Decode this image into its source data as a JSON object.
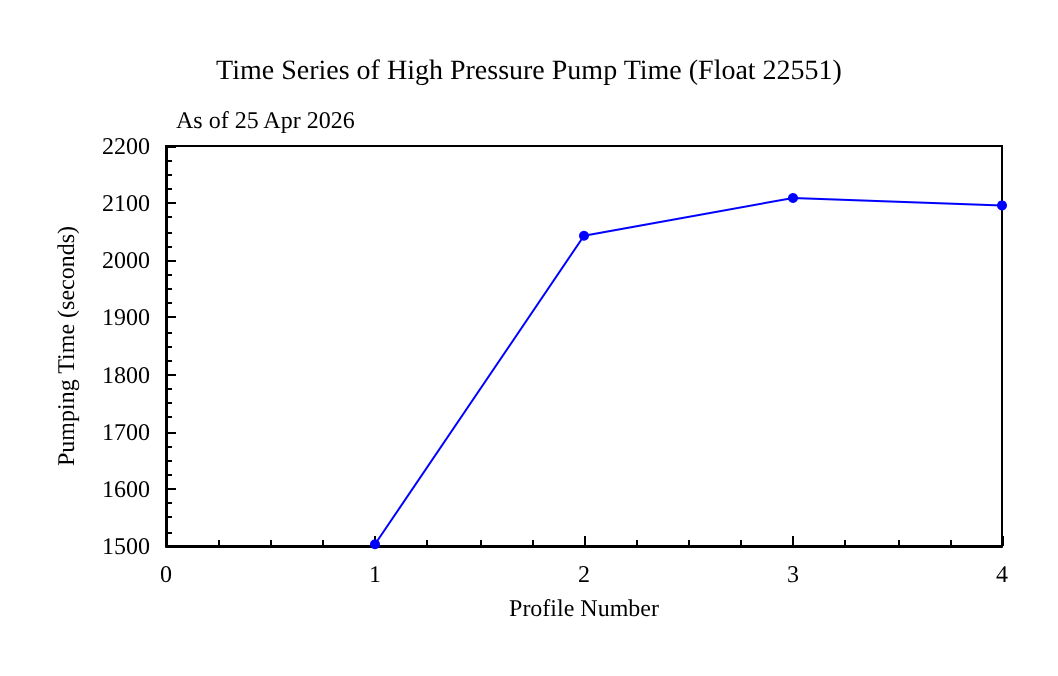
{
  "chart_data": {
    "type": "line",
    "title": "Time Series of High Pressure Pump Time (Float 22551)",
    "subtitle": "As of 25 Apr 2026",
    "xlabel": "Profile Number",
    "ylabel": "Pumping Time (seconds)",
    "x": [
      1,
      2,
      3,
      4
    ],
    "series": [
      {
        "color": "#0000ff",
        "values": [
          1503,
          2043,
          2109,
          2096
        ]
      }
    ],
    "xlim": [
      0,
      4
    ],
    "xticks": [
      0,
      1,
      2,
      3,
      4
    ],
    "ylim": [
      1500,
      2200
    ],
    "yticks": [
      1500,
      1600,
      1700,
      1800,
      1900,
      2000,
      2100,
      2200
    ],
    "grid": false,
    "marker": "circle",
    "line_style": "solid"
  }
}
